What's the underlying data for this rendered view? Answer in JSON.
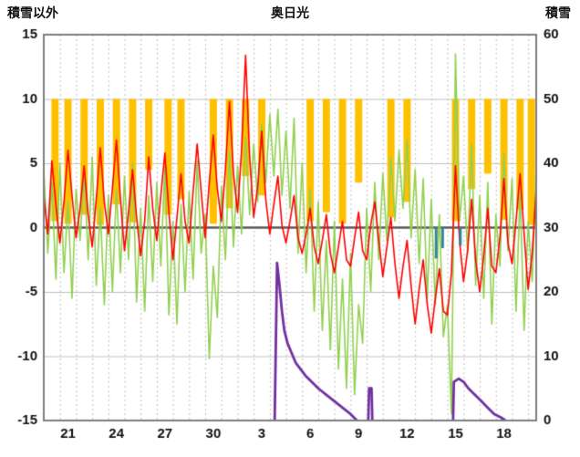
{
  "header": {
    "left_axis_title": "積雪以外",
    "chart_title": "奥日光",
    "right_axis_title": "積雪"
  },
  "chart_data": {
    "type": "line",
    "title": "奥日光",
    "left_axis": {
      "label": "積雪以外",
      "min": -15,
      "max": 15,
      "ticks": [
        15,
        10,
        5,
        0,
        -5,
        -10,
        -15
      ]
    },
    "right_axis": {
      "label": "積雪",
      "min": 0,
      "max": 60,
      "ticks": [
        60,
        50,
        40,
        30,
        20,
        10,
        0
      ]
    },
    "x_axis": {
      "min": 0,
      "max": 30.5,
      "tick_labels": [
        {
          "label": "21",
          "x": 1.5
        },
        {
          "label": "24",
          "x": 4.5
        },
        {
          "label": "27",
          "x": 7.5
        },
        {
          "label": "30",
          "x": 10.5
        },
        {
          "label": "3",
          "x": 13.5
        },
        {
          "label": "6",
          "x": 16.5
        },
        {
          "label": "9",
          "x": 19.5
        },
        {
          "label": "12",
          "x": 22.5
        },
        {
          "label": "15",
          "x": 25.5
        },
        {
          "label": "18",
          "x": 28.5
        }
      ]
    },
    "grid": {
      "h_color": "#BFBFBF",
      "v_color": "#BFBFBF",
      "zero_color": "#595959",
      "frame_color": "#7F7F7F"
    },
    "series": {
      "orange_bars": {
        "name": "sunshine-bars",
        "color": "#FFC000",
        "width_days": 0.45,
        "top": 10,
        "bars": [
          {
            "x": 0.7,
            "bottom": 0.5
          },
          {
            "x": 1.5,
            "bottom": 0.3
          },
          {
            "x": 2.5,
            "bottom": 1.0
          },
          {
            "x": 3.5,
            "bottom": 0.2
          },
          {
            "x": 4.5,
            "bottom": 1.8
          },
          {
            "x": 5.5,
            "bottom": 0.4
          },
          {
            "x": 6.5,
            "bottom": 4.5
          },
          {
            "x": 7.7,
            "bottom": 1.0
          },
          {
            "x": 8.5,
            "bottom": 2.2
          },
          {
            "x": 10.5,
            "bottom": 0.3
          },
          {
            "x": 11.5,
            "bottom": 1.5
          },
          {
            "x": 12.5,
            "bottom": 4.0
          },
          {
            "x": 13.5,
            "bottom": 2.5
          },
          {
            "x": 16.5,
            "bottom": 0.5
          },
          {
            "x": 17.5,
            "bottom": 1.2
          },
          {
            "x": 18.5,
            "bottom": 0.3
          },
          {
            "x": 19.5,
            "bottom": 3.5
          },
          {
            "x": 21.5,
            "bottom": 0.8
          },
          {
            "x": 22.5,
            "bottom": 2.0
          },
          {
            "x": 25.5,
            "bottom": 0.5
          },
          {
            "x": 26.5,
            "bottom": 3.0
          },
          {
            "x": 27.5,
            "bottom": 4.2
          },
          {
            "x": 28.5,
            "bottom": 0.6
          },
          {
            "x": 29.5,
            "bottom": 1.4
          },
          {
            "x": 30.2,
            "bottom": 0.2
          }
        ]
      },
      "red_line": {
        "name": "temperature-red-line",
        "color": "#FF0000",
        "axis": "left",
        "x_start": 0,
        "x_step": 0.25,
        "values": [
          2.5,
          -0.5,
          5.2,
          1.8,
          -1.2,
          2.0,
          6.0,
          2.5,
          -0.8,
          1.5,
          4.8,
          1.0,
          -1.5,
          2.2,
          6.2,
          2.0,
          -0.5,
          3.0,
          6.8,
          2.2,
          -1.8,
          1.2,
          4.5,
          0.8,
          -2.2,
          0.5,
          5.5,
          1.5,
          -1.0,
          2.5,
          5.8,
          1.2,
          -2.5,
          0.8,
          4.2,
          0.5,
          -1.2,
          2.8,
          6.5,
          2.8,
          -0.8,
          3.5,
          7.2,
          3.0,
          0.5,
          4.5,
          9.8,
          4.2,
          1.2,
          6.0,
          13.4,
          5.5,
          0.8,
          3.2,
          7.5,
          2.2,
          -0.5,
          1.8,
          4.0,
          0.2,
          -1.2,
          0.5,
          2.5,
          -0.8,
          -2.0,
          -0.5,
          1.5,
          -1.5,
          -2.8,
          -1.0,
          1.0,
          -2.0,
          -3.5,
          -1.5,
          0.5,
          -2.5,
          -3.0,
          -0.8,
          1.2,
          -1.8,
          -2.5,
          0.2,
          2.0,
          -1.0,
          -3.8,
          -1.5,
          0.8,
          -2.8,
          -5.5,
          -3.0,
          -1.0,
          -4.5,
          -7.5,
          -4.8,
          -2.5,
          -6.0,
          -8.2,
          -5.5,
          -3.2,
          -6.5,
          -6.8,
          -3.5,
          4.8,
          -1.0,
          -4.2,
          -1.8,
          2.2,
          -2.5,
          -5.0,
          -2.2,
          1.5,
          -3.0,
          -3.5,
          -0.8,
          3.8,
          -1.2,
          -2.8,
          0.5,
          4.2,
          -0.5,
          -4.8,
          -2.0,
          3.0,
          -5.2
        ]
      },
      "green_line": {
        "name": "secondary-green-line",
        "color": "#92D050",
        "axis": "left",
        "x_start": 0,
        "x_step": 0.25,
        "values": [
          4.5,
          -2.0,
          3.5,
          -4.0,
          5.0,
          -3.5,
          2.0,
          -5.5,
          3.0,
          -1.0,
          4.5,
          -2.5,
          5.5,
          -4.5,
          1.5,
          -6.0,
          2.5,
          -5.0,
          3.0,
          -3.5,
          4.0,
          -2.5,
          5.0,
          -5.8,
          1.5,
          -6.5,
          2.5,
          -4.2,
          3.5,
          -3.0,
          4.8,
          -6.8,
          0.5,
          -7.5,
          1.8,
          -5.0,
          2.8,
          -4.0,
          5.2,
          -2.0,
          1.0,
          -10.2,
          -3.0,
          -7.0,
          3.2,
          -2.5,
          6.0,
          -1.5,
          4.8,
          -0.5,
          7.0,
          1.0,
          6.5,
          2.0,
          8.0,
          3.5,
          8.8,
          4.0,
          9.2,
          2.5,
          7.5,
          1.5,
          8.5,
          -2.0,
          5.0,
          -3.5,
          3.0,
          -6.5,
          2.0,
          -8.0,
          -1.0,
          -9.5,
          0.5,
          -11.0,
          -4.0,
          -12.5,
          -2.0,
          -13.0,
          -6.0,
          -9.0,
          1.5,
          -5.0,
          3.5,
          -2.5,
          4.2,
          -1.0,
          5.5,
          0.5,
          6.0,
          1.5,
          6.8,
          -0.8,
          4.5,
          -2.8,
          3.8,
          -5.5,
          2.2,
          -6.0,
          1.0,
          -8.5,
          -6.0,
          -14.5,
          13.5,
          0.5,
          4.0,
          -2.0,
          6.5,
          -4.5,
          2.5,
          -5.5,
          3.5,
          -7.5,
          1.0,
          -3.0,
          5.8,
          -1.8,
          3.8,
          -6.5,
          2.8,
          -8.0,
          0.5,
          -4.2,
          4.5,
          -2.2
        ]
      },
      "purple_line": {
        "name": "snow-depth-purple-line",
        "color": "#7030A0",
        "axis": "right",
        "segments": [
          [
            [
              14.3,
              0
            ],
            [
              14.45,
              24.5
            ],
            [
              14.6,
              21
            ],
            [
              14.75,
              17
            ],
            [
              14.9,
              14
            ],
            [
              15.1,
              12
            ],
            [
              15.35,
              10.5
            ],
            [
              15.6,
              9
            ],
            [
              15.9,
              8
            ],
            [
              16.2,
              7
            ],
            [
              16.6,
              6
            ],
            [
              17.0,
              5
            ],
            [
              17.5,
              4
            ],
            [
              18.0,
              3
            ],
            [
              18.5,
              2
            ],
            [
              19.0,
              1
            ],
            [
              19.4,
              0
            ]
          ],
          [
            [
              20.1,
              0
            ],
            [
              20.15,
              5
            ],
            [
              20.3,
              5
            ],
            [
              20.35,
              0
            ]
          ],
          [
            [
              25.35,
              0
            ],
            [
              25.4,
              6
            ],
            [
              25.7,
              6.5
            ],
            [
              26.0,
              6
            ],
            [
              26.3,
              5
            ],
            [
              26.7,
              4
            ],
            [
              27.1,
              3
            ],
            [
              27.5,
              2
            ],
            [
              27.9,
              1
            ],
            [
              28.3,
              0.5
            ],
            [
              28.6,
              0
            ]
          ]
        ]
      },
      "blue_ticks": {
        "name": "precipitation-blue-ticks",
        "color": "#31849B",
        "axis": "left",
        "segments": [
          [
            [
              24.3,
              0
            ],
            [
              24.3,
              -2.4
            ]
          ],
          [
            [
              24.7,
              0
            ],
            [
              24.7,
              -1.6
            ]
          ],
          [
            [
              25.8,
              0
            ],
            [
              25.8,
              -1.4
            ]
          ]
        ]
      }
    }
  }
}
